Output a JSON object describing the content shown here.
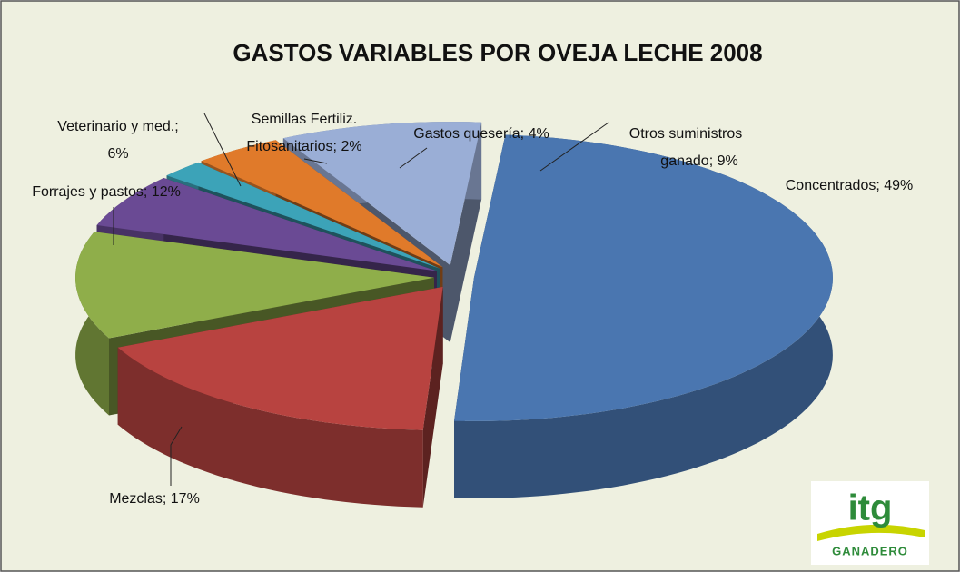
{
  "chart_data": {
    "type": "pie3d",
    "title": "GASTOS VARIABLES POR OVEJA LECHE 2008",
    "values": [
      49,
      17,
      12,
      6,
      2,
      4,
      9
    ],
    "value_labels": [
      [
        "Concentrados; 49%"
      ],
      [
        "Mezclas; 17%"
      ],
      [
        "Forrajes y pastos; 12%"
      ],
      [
        "Veterinario y med.;",
        "6%"
      ],
      [
        "Semillas Fertiliz.",
        "Fitosanitarios; 2%"
      ],
      [
        "Gastos quesería; 4%"
      ],
      [
        "Otros suministros",
        "ganado; 9%"
      ]
    ],
    "colors": [
      "#4a76b0",
      "#b84340",
      "#8fae4a",
      "#6a4a94",
      "#3ca3b8",
      "#e07a2a",
      "#9aaed6"
    ]
  },
  "logo": {
    "mark": "itg",
    "text": "GANADERO"
  }
}
